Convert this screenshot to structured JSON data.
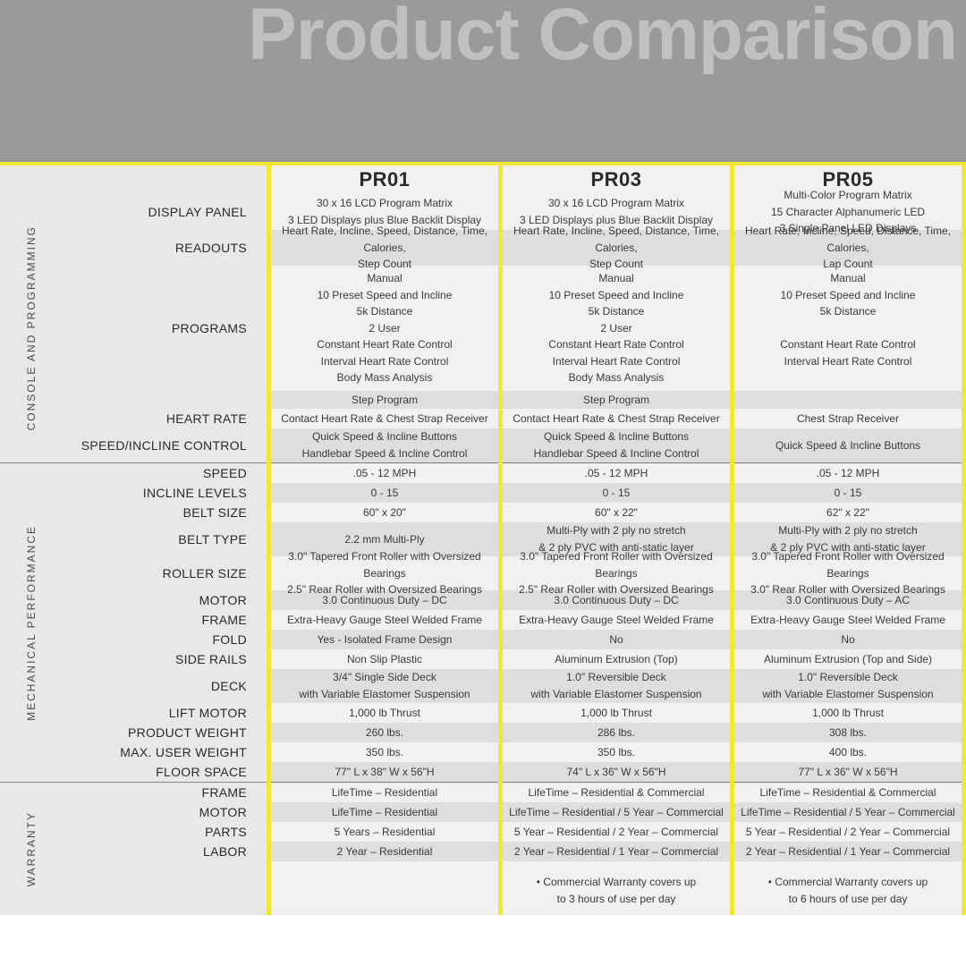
{
  "title": "Product Comparison",
  "colors": {
    "header_bg": "#9a9a9a",
    "title_color": "#c0c0c0",
    "accent": "#f5e633",
    "row_alt_a": "#f1f1f1",
    "row_alt_b": "#dedede",
    "label_bg": "#e8e8e8",
    "text": "#3a3a3a",
    "sep": "#7a7a7a"
  },
  "products": [
    "PR01",
    "PR03",
    "PR05"
  ],
  "categories": [
    {
      "name": "CONSOLE AND PROGRAMMING",
      "rows": [
        "display_panel",
        "readouts",
        "programs",
        "step_program",
        "heart_rate",
        "speed_incline_control"
      ]
    },
    {
      "name": "MECHANICAL PERFORMANCE",
      "rows": [
        "speed",
        "incline_levels",
        "belt_size",
        "belt_type",
        "roller_size",
        "motor_mech",
        "frame_mech",
        "fold",
        "side_rails",
        "deck",
        "lift_motor",
        "product_weight",
        "max_user_weight",
        "floor_space"
      ]
    },
    {
      "name": "WARRANTY",
      "rows": [
        "frame_war",
        "motor_war",
        "parts",
        "labor",
        "footnote"
      ]
    }
  ],
  "row_labels": {
    "display_panel": "DISPLAY PANEL",
    "readouts": "READOUTS",
    "programs": "PROGRAMS",
    "step_program": "",
    "heart_rate": "HEART RATE",
    "speed_incline_control": "SPEED/INCLINE CONTROL",
    "speed": "SPEED",
    "incline_levels": "INCLINE LEVELS",
    "belt_size": "BELT SIZE",
    "belt_type": "BELT TYPE",
    "roller_size": "ROLLER SIZE",
    "motor_mech": "MOTOR",
    "frame_mech": "FRAME",
    "fold": "FOLD",
    "side_rails": "SIDE RAILS",
    "deck": "DECK",
    "lift_motor": "LIFT MOTOR",
    "product_weight": "PRODUCT WEIGHT",
    "max_user_weight": "MAX. USER WEIGHT",
    "floor_space": "FLOOR SPACE",
    "frame_war": "FRAME",
    "motor_war": "MOTOR",
    "parts": "PARTS",
    "labor": "LABOR",
    "footnote": ""
  },
  "row_heights": {
    "display_panel": 40,
    "readouts": 40,
    "programs": 140,
    "step_program": 20,
    "heart_rate": 22,
    "speed_incline_control": 38,
    "speed": 22,
    "incline_levels": 22,
    "belt_size": 22,
    "belt_type": 38,
    "roller_size": 38,
    "motor_mech": 22,
    "frame_mech": 22,
    "fold": 22,
    "side_rails": 22,
    "deck": 38,
    "lift_motor": 22,
    "product_weight": 22,
    "max_user_weight": 22,
    "floor_space": 22,
    "frame_war": 22,
    "motor_war": 22,
    "parts": 22,
    "labor": 22,
    "footnote": 60
  },
  "row_shade": {
    "display_panel": "a",
    "readouts": "b",
    "programs": "a",
    "step_program": "b",
    "heart_rate": "a",
    "speed_incline_control": "b",
    "speed": "a",
    "incline_levels": "b",
    "belt_size": "a",
    "belt_type": "b",
    "roller_size": "a",
    "motor_mech": "b",
    "frame_mech": "a",
    "fold": "b",
    "side_rails": "a",
    "deck": "b",
    "lift_motor": "a",
    "product_weight": "b",
    "max_user_weight": "a",
    "floor_space": "b",
    "frame_war": "a",
    "motor_war": "b",
    "parts": "a",
    "labor": "b",
    "footnote": "a"
  },
  "cells": {
    "display_panel": [
      [
        "30 x 16 LCD Program Matrix",
        "3 LED Displays plus Blue Backlit Display"
      ],
      [
        "30 x 16 LCD Program Matrix",
        "3 LED Displays plus Blue Backlit Display"
      ],
      [
        "Multi-Color Program Matrix",
        "15 Character Alphanumeric LED",
        "3 Single Panel LED Displays"
      ]
    ],
    "readouts": [
      [
        "Heart Rate, Incline, Speed, Distance, Time, Calories,",
        "Step Count"
      ],
      [
        "Heart Rate, Incline, Speed, Distance, Time, Calories,",
        "Step Count"
      ],
      [
        "Heart Rate, Incline, Speed, Distance, Time, Calories,",
        "Lap Count"
      ]
    ],
    "programs": [
      [
        "Manual",
        "10 Preset Speed and Incline",
        "5k Distance",
        "2 User",
        "Constant Heart Rate Control",
        "Interval Heart Rate Control",
        "Body Mass Analysis"
      ],
      [
        "Manual",
        "10 Preset Speed and Incline",
        "5k Distance",
        "2 User",
        "Constant Heart Rate Control",
        "Interval Heart Rate Control",
        "Body Mass Analysis"
      ],
      [
        "Manual",
        "10 Preset Speed and Incline",
        "5k Distance",
        "",
        "Constant Heart Rate Control",
        "Interval Heart Rate Control",
        ""
      ]
    ],
    "step_program": [
      [
        "Step Program"
      ],
      [
        "Step Program"
      ],
      [
        ""
      ]
    ],
    "heart_rate": [
      [
        "Contact Heart Rate & Chest Strap  Receiver"
      ],
      [
        "Contact Heart Rate & Chest Strap  Receiver"
      ],
      [
        "Chest Strap  Receiver"
      ]
    ],
    "speed_incline_control": [
      [
        "Quick Speed & Incline Buttons",
        "Handlebar Speed & Incline Control"
      ],
      [
        "Quick Speed & Incline Buttons",
        "Handlebar Speed & Incline Control"
      ],
      [
        "Quick Speed & Incline Buttons"
      ]
    ],
    "speed": [
      [
        ".05 - 12 MPH"
      ],
      [
        ".05 - 12 MPH"
      ],
      [
        ".05 - 12 MPH"
      ]
    ],
    "incline_levels": [
      [
        "0 - 15"
      ],
      [
        "0 - 15"
      ],
      [
        "0 - 15"
      ]
    ],
    "belt_size": [
      [
        "60\" x 20\""
      ],
      [
        "60\" x 22\""
      ],
      [
        "62\" x 22\""
      ]
    ],
    "belt_type": [
      [
        "2.2 mm Multi-Ply"
      ],
      [
        "Multi-Ply with 2 ply no stretch",
        "& 2 ply PVC with anti-static layer"
      ],
      [
        "Multi-Ply with 2 ply no stretch",
        "& 2 ply PVC with anti-static layer"
      ]
    ],
    "roller_size": [
      [
        "3.0\" Tapered  Front Roller with Oversized Bearings",
        "2.5\" Rear Roller with Oversized Bearings"
      ],
      [
        "3.0\" Tapered  Front Roller with Oversized Bearings",
        "2.5\" Rear Roller with Oversized Bearings"
      ],
      [
        "3.0\" Tapered  Front Roller with Oversized Bearings",
        "3.0\" Rear Roller with Oversized Bearings"
      ]
    ],
    "motor_mech": [
      [
        "3.0 Continuous Duty – DC"
      ],
      [
        "3.0 Continuous Duty – DC"
      ],
      [
        "3.0 Continuous Duty – AC"
      ]
    ],
    "frame_mech": [
      [
        "Extra-Heavy Gauge Steel Welded Frame"
      ],
      [
        "Extra-Heavy Gauge Steel Welded Frame"
      ],
      [
        "Extra-Heavy Gauge Steel Welded Frame"
      ]
    ],
    "fold": [
      [
        "Yes - Isolated Frame Design"
      ],
      [
        "No"
      ],
      [
        "No"
      ]
    ],
    "side_rails": [
      [
        "Non Slip Plastic"
      ],
      [
        "Aluminum Extrusion (Top)"
      ],
      [
        "Aluminum Extrusion (Top and Side)"
      ]
    ],
    "deck": [
      [
        "3/4\" Single Side Deck",
        "with Variable Elastomer Suspension"
      ],
      [
        "1.0\"  Reversible Deck",
        "with Variable Elastomer Suspension"
      ],
      [
        "1.0\"  Reversible Deck",
        "with Variable Elastomer Suspension"
      ]
    ],
    "lift_motor": [
      [
        "1,000 lb Thrust"
      ],
      [
        "1,000 lb Thrust"
      ],
      [
        "1,000 lb Thrust"
      ]
    ],
    "product_weight": [
      [
        "260 lbs."
      ],
      [
        "286 lbs."
      ],
      [
        "308 lbs."
      ]
    ],
    "max_user_weight": [
      [
        "350 lbs."
      ],
      [
        "350 lbs."
      ],
      [
        "400 lbs."
      ]
    ],
    "floor_space": [
      [
        "77\" L x 38\" W x 56\"H"
      ],
      [
        "74\" L x 36\" W x 56\"H"
      ],
      [
        "77\" L x 36\" W x 56\"H"
      ]
    ],
    "frame_war": [
      [
        "LifeTime – Residential"
      ],
      [
        "LifeTime – Residential & Commercial"
      ],
      [
        "LifeTime – Residential & Commercial"
      ]
    ],
    "motor_war": [
      [
        "LifeTime – Residential"
      ],
      [
        "LifeTime – Residential / 5 Year – Commercial"
      ],
      [
        "LifeTime – Residential / 5 Year – Commercial"
      ]
    ],
    "parts": [
      [
        "5 Years – Residential"
      ],
      [
        "5 Year – Residential / 2 Year  – Commercial"
      ],
      [
        "5 Year – Residential / 2 Year  – Commercial"
      ]
    ],
    "labor": [
      [
        "2 Year – Residential"
      ],
      [
        "2 Year – Residential / 1 Year – Commercial"
      ],
      [
        "2 Year – Residential / 1 Year – Commercial"
      ]
    ],
    "footnote": [
      [
        ""
      ],
      [
        "• Commercial Warranty covers up",
        "to 3 hours of use per day"
      ],
      [
        "• Commercial Warranty covers up",
        "to 6 hours of use per day"
      ]
    ]
  }
}
